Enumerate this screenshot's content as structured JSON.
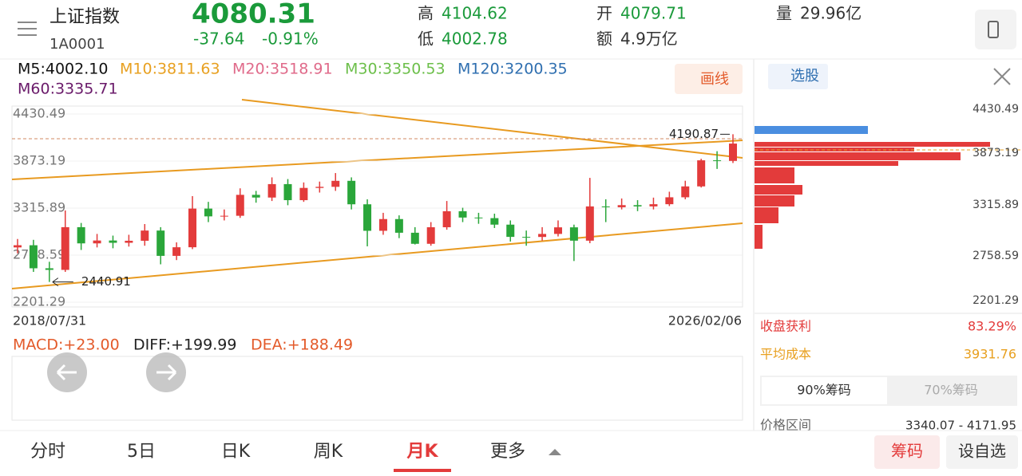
{
  "header": {
    "name": "上证指数",
    "code": "1A0001",
    "price": "4080.31",
    "change": "-37.64",
    "change_pct": "-0.91%",
    "high_label": "高",
    "high": "4104.62",
    "low_label": "低",
    "low": "4002.78",
    "open_label": "开",
    "open": "4079.71",
    "amount_label": "额",
    "amount": "4.9万亿",
    "volume_label": "量",
    "volume": "29.96亿"
  },
  "ma_legend": [
    "M5:4002.10",
    "M10:3811.63",
    "M20:3518.91",
    "M30:3350.53",
    "M120:3200.35",
    "M60:3335.71"
  ],
  "draw_button": "画线",
  "chart_data": {
    "type": "candlestick",
    "yticks": [
      4430.49,
      3873.19,
      3315.89,
      2758.59,
      2201.29
    ],
    "ylim": [
      2201.29,
      4430.49
    ],
    "start_date": "2018/07/31",
    "end_date": "2026/02/06",
    "annotations": [
      {
        "label": "4190.87",
        "value": 4190.87
      },
      {
        "label": "2440.91",
        "value": 2440.91
      }
    ],
    "open": [
      2850,
      2876,
      2603,
      2584,
      3090,
      2898,
      2932,
      2905,
      2929,
      3050,
      2750,
      2852,
      3310,
      3218,
      3225,
      3473,
      3441,
      3600,
      3410,
      3555,
      3568,
      3639,
      3361,
      3047,
      3186,
      3024,
      2893,
      3089,
      3279,
      3204,
      3197,
      3120,
      2975,
      2974,
      3010,
      3088,
      2930,
      3336,
      3326,
      3351,
      3336,
      3362,
      3444,
      3573,
      3882,
      3875
    ],
    "close": [
      2876,
      2603,
      2584,
      3090,
      2898,
      2932,
      2905,
      2929,
      3050,
      2750,
      2852,
      3310,
      3218,
      3225,
      3473,
      3441,
      3600,
      3410,
      3555,
      3568,
      3639,
      3361,
      3047,
      3186,
      3024,
      2893,
      3089,
      3279,
      3204,
      3197,
      3120,
      2975,
      2974,
      3010,
      3088,
      2930,
      3336,
      3326,
      3351,
      3336,
      3362,
      3444,
      3573,
      3882,
      3875,
      4080.31
    ],
    "high": [
      2950,
      2940,
      2680,
      3288,
      3140,
      3010,
      2990,
      3000,
      3127,
      3090,
      2910,
      3458,
      3390,
      3300,
      3550,
      3520,
      3680,
      3660,
      3620,
      3630,
      3731,
      3680,
      3420,
      3260,
      3230,
      3090,
      3150,
      3400,
      3320,
      3260,
      3250,
      3170,
      3050,
      3090,
      3170,
      3120,
      3674,
      3420,
      3430,
      3410,
      3440,
      3510,
      3640,
      3900,
      3990,
      4190.87
    ],
    "low": [
      2780,
      2560,
      2440.91,
      2560,
      2820,
      2850,
      2840,
      2860,
      2870,
      2650,
      2700,
      2830,
      3150,
      3170,
      3200,
      3380,
      3400,
      3350,
      3390,
      3500,
      3520,
      3300,
      2863,
      3000,
      2960,
      2885,
      2870,
      3060,
      3150,
      3130,
      3080,
      2920,
      2870,
      2930,
      2980,
      2689,
      2900,
      3150,
      3300,
      3280,
      3300,
      3340,
      3420,
      3560,
      3780,
      3850
    ],
    "up_color": "#e33b3b",
    "down_color": "#2aa63a"
  },
  "macd_legend": [
    "MACD:+23.00",
    "DIFF:+199.99",
    "DEA:+188.49"
  ],
  "side": {
    "pick": "选股",
    "yticks": [
      "4430.49",
      "3873.19",
      "3315.89",
      "2758.59",
      "2201.29"
    ],
    "profit_label": "收盘获利",
    "profit": "83.29%",
    "cost_label": "平均成本",
    "cost": "3931.76",
    "tab1": "90%筹码",
    "tab2": "70%筹码",
    "range_label": "价格区间",
    "range": "3340.07 - 4171.95"
  },
  "tabs": [
    "分时",
    "5日",
    "日K",
    "周K",
    "月K",
    "更多"
  ],
  "buttons": [
    "筹码",
    "设自选"
  ]
}
